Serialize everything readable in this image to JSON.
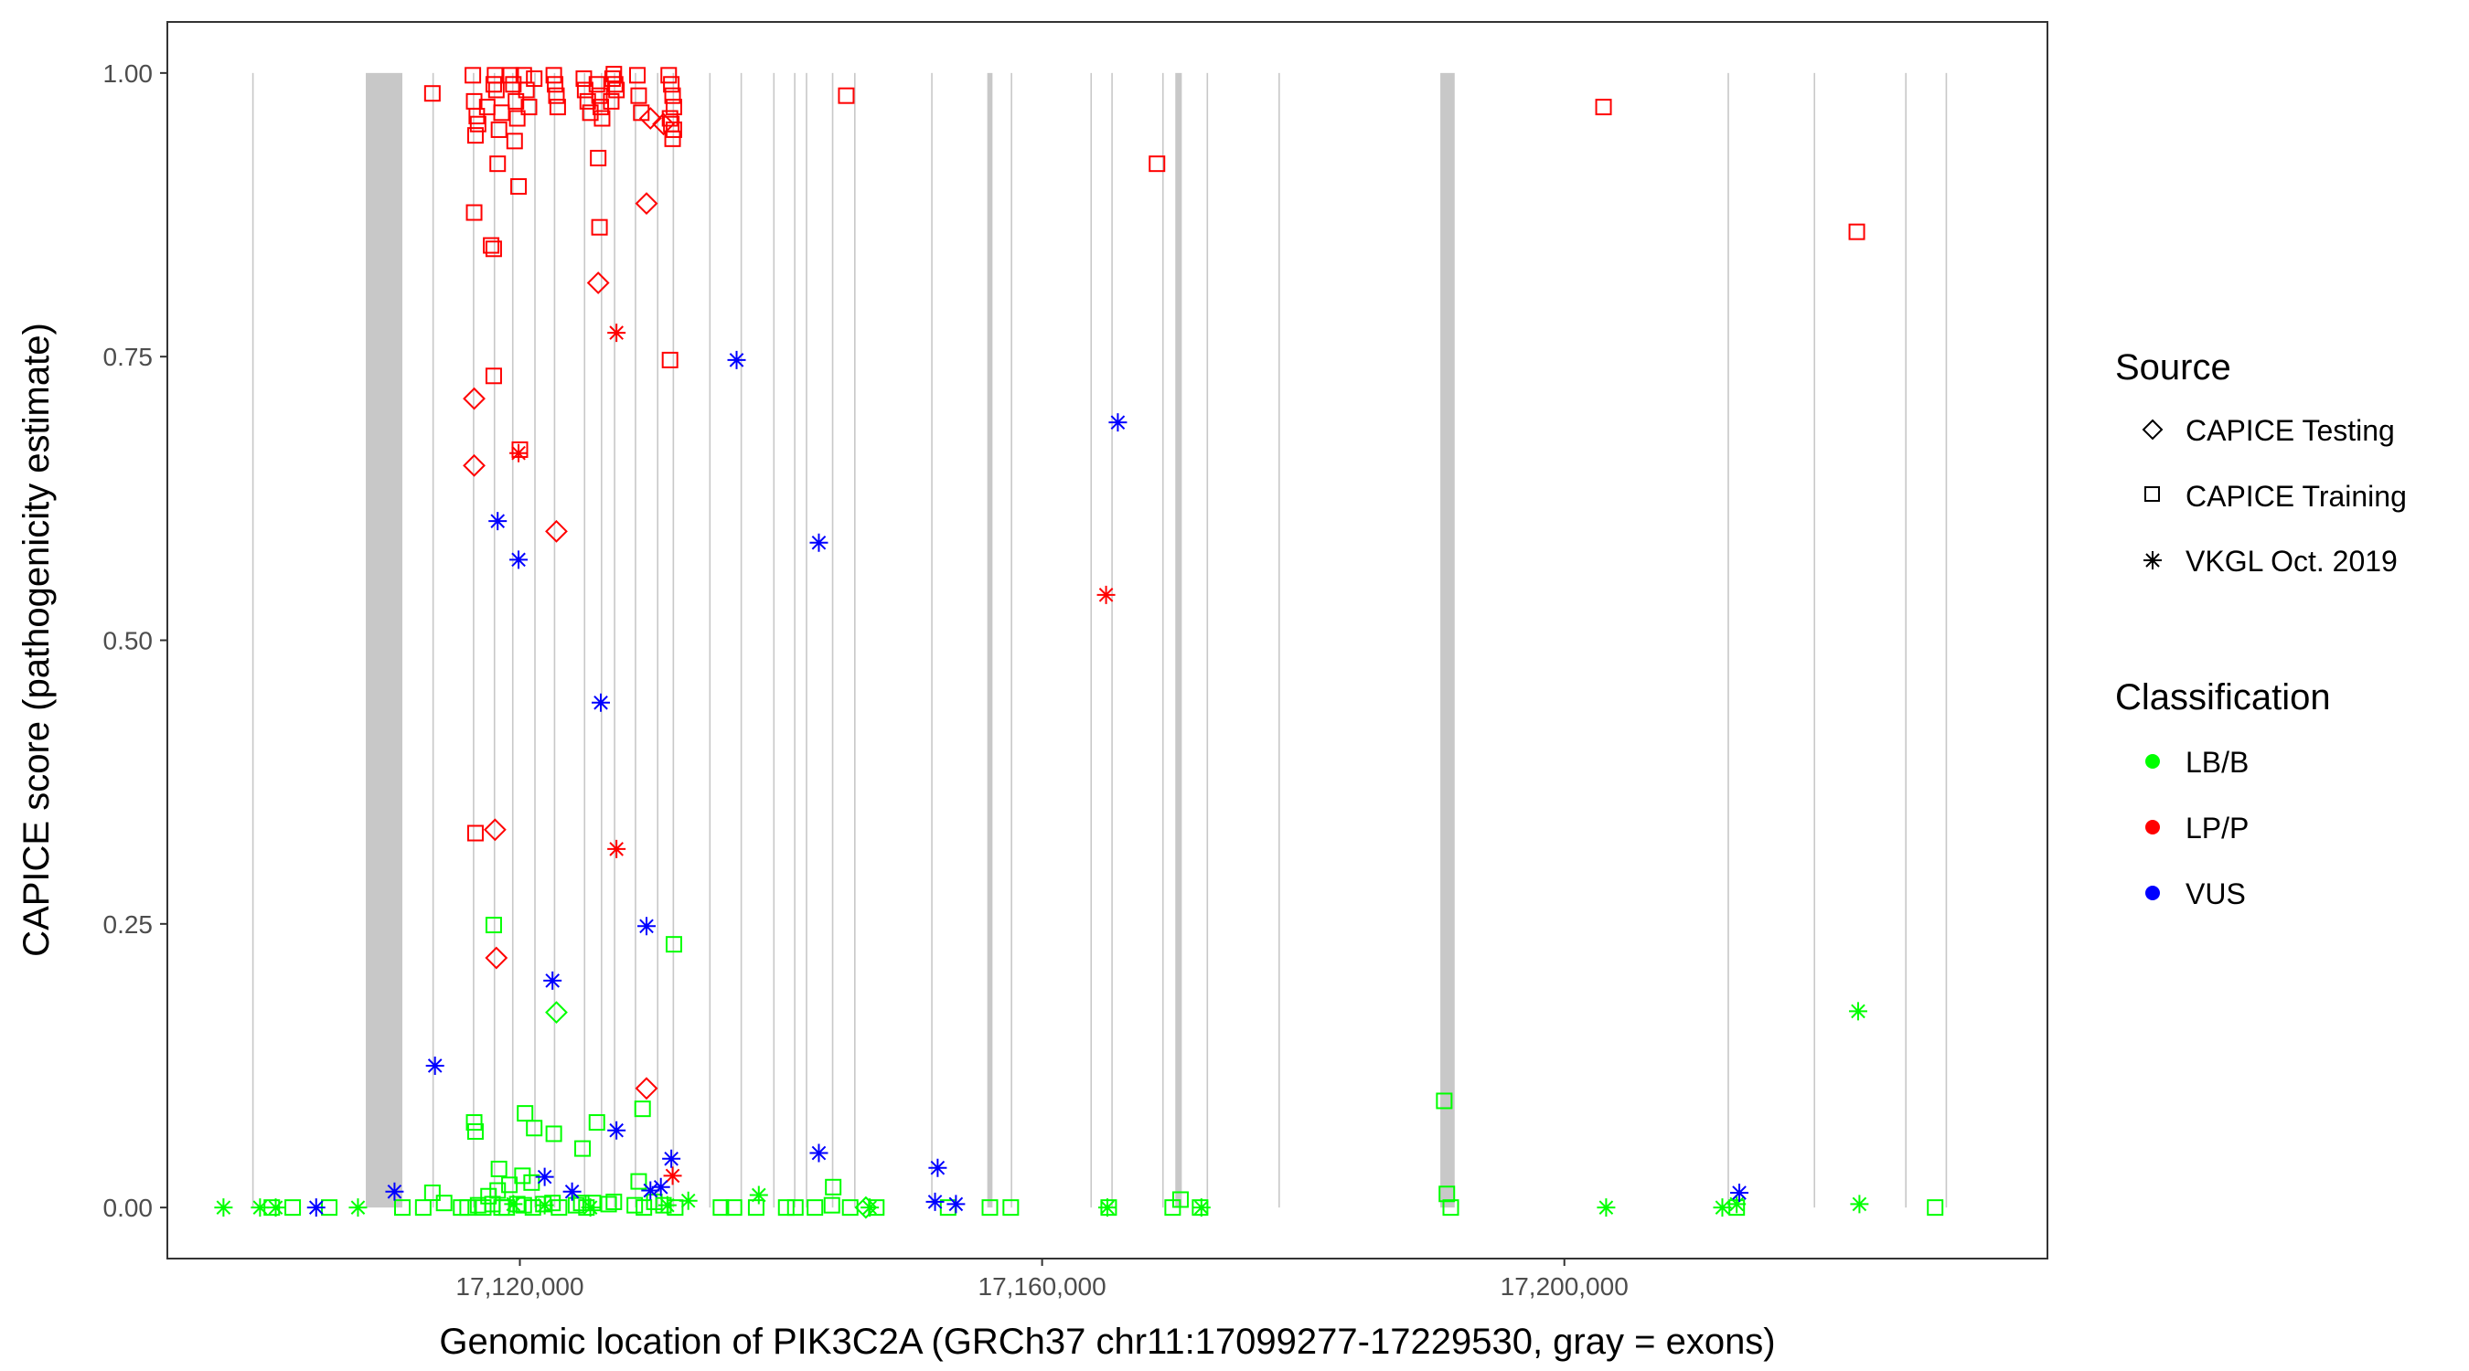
{
  "chart_data": {
    "type": "scatter",
    "xlabel": "Genomic location of PIK3C2A (GRCh37 chr11:17099277-17229530, gray = exons)",
    "ylabel": "CAPICE score (pathogenicity estimate)",
    "xlim": [
      17093000,
      17237000
    ],
    "ylim": [
      -0.045,
      1.045
    ],
    "xticks": [
      17120000,
      17160000,
      17200000
    ],
    "xtick_labels": [
      "17,120,000",
      "17,160,000",
      "17,200,000"
    ],
    "yticks": [
      0,
      0.25,
      0.5,
      0.75,
      1.0
    ],
    "ytick_labels": [
      "0.00",
      "0.25",
      "0.50",
      "0.75",
      "1.00"
    ],
    "grid": false,
    "exons": [
      {
        "start": 17099500,
        "end": 17099600
      },
      {
        "start": 17108200,
        "end": 17111000
      },
      {
        "start": 17113300,
        "end": 17113400
      },
      {
        "start": 17116400,
        "end": 17116500
      },
      {
        "start": 17118000,
        "end": 17118100
      },
      {
        "start": 17119400,
        "end": 17119500
      },
      {
        "start": 17121100,
        "end": 17121200
      },
      {
        "start": 17122600,
        "end": 17122700
      },
      {
        "start": 17124900,
        "end": 17125000
      },
      {
        "start": 17126200,
        "end": 17126300
      },
      {
        "start": 17127200,
        "end": 17127300
      },
      {
        "start": 17128800,
        "end": 17128900
      },
      {
        "start": 17130500,
        "end": 17130600
      },
      {
        "start": 17131700,
        "end": 17131800
      },
      {
        "start": 17134500,
        "end": 17134600
      },
      {
        "start": 17136900,
        "end": 17137000
      },
      {
        "start": 17139400,
        "end": 17139500
      },
      {
        "start": 17141000,
        "end": 17141100
      },
      {
        "start": 17141900,
        "end": 17142000
      },
      {
        "start": 17143900,
        "end": 17144000
      },
      {
        "start": 17145600,
        "end": 17145700
      },
      {
        "start": 17151500,
        "end": 17151600
      },
      {
        "start": 17155800,
        "end": 17156200
      },
      {
        "start": 17157600,
        "end": 17157700
      },
      {
        "start": 17163700,
        "end": 17163800
      },
      {
        "start": 17165300,
        "end": 17165400
      },
      {
        "start": 17169200,
        "end": 17169300
      },
      {
        "start": 17170200,
        "end": 17170700
      },
      {
        "start": 17172600,
        "end": 17172700
      },
      {
        "start": 17178100,
        "end": 17178200
      },
      {
        "start": 17190500,
        "end": 17191600
      },
      {
        "start": 17212500,
        "end": 17212600
      },
      {
        "start": 17219100,
        "end": 17219200
      },
      {
        "start": 17226100,
        "end": 17226200
      },
      {
        "start": 17229200,
        "end": 17229300
      }
    ],
    "legend": {
      "position": "right",
      "source_title": "Source",
      "source_entries": [
        {
          "label": "CAPICE Testing",
          "shape": "diamond"
        },
        {
          "label": "CAPICE Training",
          "shape": "square"
        },
        {
          "label": "VKGL Oct. 2019",
          "shape": "asterisk"
        }
      ],
      "class_title": "Classification",
      "class_entries": [
        {
          "label": "LB/B",
          "color": "#00ff00"
        },
        {
          "label": "LP/P",
          "color": "#ff0000"
        },
        {
          "label": "VUS",
          "color": "#0000ff"
        }
      ]
    },
    "colors": {
      "LB/B": "#00ff00",
      "LP/P": "#ff0000",
      "VUS": "#0000ff"
    },
    "series": [
      {
        "source": "CAPICE Training",
        "classification": "LP/P",
        "points": [
          [
            17113300,
            0.982
          ],
          [
            17116400,
            0.998
          ],
          [
            17116500,
            0.975
          ],
          [
            17116700,
            0.962
          ],
          [
            17116800,
            0.955
          ],
          [
            17116600,
            0.945
          ],
          [
            17117500,
            0.97
          ],
          [
            17118000,
            0.99
          ],
          [
            17118100,
            0.998
          ],
          [
            17118200,
            0.985
          ],
          [
            17118300,
            0.92
          ],
          [
            17118400,
            0.95
          ],
          [
            17118600,
            0.965
          ],
          [
            17119300,
            0.998
          ],
          [
            17119500,
            0.99
          ],
          [
            17119700,
            0.975
          ],
          [
            17119800,
            0.96
          ],
          [
            17119600,
            0.94
          ],
          [
            17119900,
            0.9
          ],
          [
            17120300,
            0.998
          ],
          [
            17120500,
            0.985
          ],
          [
            17120700,
            0.97
          ],
          [
            17121100,
            0.995
          ],
          [
            17122600,
            0.998
          ],
          [
            17122700,
            0.99
          ],
          [
            17122800,
            0.98
          ],
          [
            17122900,
            0.97
          ],
          [
            17124900,
            0.995
          ],
          [
            17125000,
            0.985
          ],
          [
            17125200,
            0.975
          ],
          [
            17125400,
            0.965
          ],
          [
            17125900,
            0.99
          ],
          [
            17126100,
            0.98
          ],
          [
            17126200,
            0.97
          ],
          [
            17126300,
            0.96
          ],
          [
            17127100,
            0.995
          ],
          [
            17127200,
            0.999
          ],
          [
            17127300,
            0.99
          ],
          [
            17127400,
            0.985
          ],
          [
            17127000,
            0.975
          ],
          [
            17129000,
            0.998
          ],
          [
            17129100,
            0.98
          ],
          [
            17129300,
            0.965
          ],
          [
            17131400,
            0.998
          ],
          [
            17131600,
            0.99
          ],
          [
            17131700,
            0.98
          ],
          [
            17131800,
            0.97
          ],
          [
            17131500,
            0.96
          ],
          [
            17131600,
            0.955
          ],
          [
            17131700,
            0.942
          ],
          [
            17131800,
            0.95
          ],
          [
            17145000,
            0.98
          ],
          [
            17168800,
            0.92
          ],
          [
            17203000,
            0.97
          ],
          [
            17222400,
            0.86
          ],
          [
            17116500,
            0.877
          ],
          [
            17117800,
            0.848
          ],
          [
            17118000,
            0.845
          ],
          [
            17118000,
            0.733
          ],
          [
            17120000,
            0.668
          ],
          [
            17126000,
            0.925
          ],
          [
            17126100,
            0.864
          ],
          [
            17131500,
            0.747
          ],
          [
            17116600,
            0.33
          ]
        ]
      },
      {
        "source": "CAPICE Testing",
        "classification": "LP/P",
        "points": [
          [
            17130000,
            0.96
          ],
          [
            17131000,
            0.955
          ],
          [
            17129700,
            0.885
          ],
          [
            17126000,
            0.815
          ],
          [
            17116500,
            0.713
          ],
          [
            17116500,
            0.654
          ],
          [
            17122800,
            0.596
          ],
          [
            17118100,
            0.333
          ],
          [
            17118200,
            0.22
          ],
          [
            17129700,
            0.105
          ]
        ]
      },
      {
        "source": "VKGL Oct. 2019",
        "classification": "LP/P",
        "points": [
          [
            17127400,
            0.771
          ],
          [
            17164900,
            0.54
          ],
          [
            17127400,
            0.316
          ],
          [
            17119900,
            0.665
          ],
          [
            17131700,
            0.028
          ]
        ]
      },
      {
        "source": "VKGL Oct. 2019",
        "classification": "VUS",
        "points": [
          [
            17136600,
            0.747
          ],
          [
            17165800,
            0.692
          ],
          [
            17118300,
            0.605
          ],
          [
            17119900,
            0.571
          ],
          [
            17142900,
            0.586
          ],
          [
            17126200,
            0.445
          ],
          [
            17129700,
            0.248
          ],
          [
            17122500,
            0.2
          ],
          [
            17113500,
            0.125
          ],
          [
            17127400,
            0.068
          ],
          [
            17131600,
            0.043
          ],
          [
            17142900,
            0.048
          ],
          [
            17152000,
            0.035
          ],
          [
            17121900,
            0.027
          ],
          [
            17130800,
            0.018
          ],
          [
            17130000,
            0.015
          ],
          [
            17124000,
            0.014
          ],
          [
            17110400,
            0.014
          ],
          [
            17213400,
            0.013
          ],
          [
            17104400,
            0.0
          ],
          [
            17151800,
            0.005
          ],
          [
            17153400,
            0.003
          ]
        ]
      },
      {
        "source": "CAPICE Training",
        "classification": "LB/B",
        "points": [
          [
            17118000,
            0.249
          ],
          [
            17131800,
            0.232
          ],
          [
            17116500,
            0.075
          ],
          [
            17116600,
            0.067
          ],
          [
            17120400,
            0.083
          ],
          [
            17121100,
            0.07
          ],
          [
            17122600,
            0.065
          ],
          [
            17124800,
            0.052
          ],
          [
            17125900,
            0.075
          ],
          [
            17129400,
            0.087
          ],
          [
            17190800,
            0.094
          ],
          [
            17118400,
            0.034
          ],
          [
            17120200,
            0.028
          ],
          [
            17120900,
            0.022
          ],
          [
            17119200,
            0.02
          ],
          [
            17118300,
            0.015
          ],
          [
            17117600,
            0.01
          ],
          [
            17113300,
            0.013
          ],
          [
            17144000,
            0.018
          ],
          [
            17143900,
            0.002
          ],
          [
            17129100,
            0.023
          ],
          [
            17191000,
            0.012
          ],
          [
            17170600,
            0.007
          ],
          [
            17125600,
            0.004
          ],
          [
            17114200,
            0.004
          ],
          [
            17115500,
            0.0
          ],
          [
            17116000,
            0.0
          ],
          [
            17116800,
            0.002
          ],
          [
            17117200,
            0.0
          ],
          [
            17117900,
            0.003
          ],
          [
            17118600,
            0.0
          ],
          [
            17119000,
            0.0
          ],
          [
            17119800,
            0.003
          ],
          [
            17120300,
            0.002
          ],
          [
            17121000,
            0.0
          ],
          [
            17121800,
            0.003
          ],
          [
            17122500,
            0.004
          ],
          [
            17123000,
            0.0
          ],
          [
            17124300,
            0.002
          ],
          [
            17124700,
            0.004
          ],
          [
            17125100,
            0.0
          ],
          [
            17126800,
            0.003
          ],
          [
            17127200,
            0.005
          ],
          [
            17128800,
            0.002
          ],
          [
            17129500,
            0.0
          ],
          [
            17130300,
            0.005
          ],
          [
            17131000,
            0.002
          ],
          [
            17131900,
            0.0
          ],
          [
            17135400,
            0.0
          ],
          [
            17136400,
            0.0
          ],
          [
            17138100,
            0.0
          ],
          [
            17140400,
            0.0
          ],
          [
            17141100,
            0.0
          ],
          [
            17142600,
            0.0
          ],
          [
            17145300,
            0.0
          ],
          [
            17147300,
            0.0
          ],
          [
            17152800,
            0.0
          ],
          [
            17156000,
            0.0
          ],
          [
            17157600,
            0.0
          ],
          [
            17165100,
            0.0
          ],
          [
            17170000,
            0.0
          ],
          [
            17172100,
            0.0
          ],
          [
            17191300,
            0.0
          ],
          [
            17213200,
            0.0
          ],
          [
            17228400,
            0.0
          ],
          [
            17101000,
            0.0
          ],
          [
            17102600,
            0.0
          ],
          [
            17105400,
            0.0
          ],
          [
            17111000,
            0.0
          ],
          [
            17112600,
            0.0
          ]
        ]
      },
      {
        "source": "CAPICE Testing",
        "classification": "LB/B",
        "points": [
          [
            17122800,
            0.172
          ],
          [
            17146500,
            0.0
          ]
        ]
      },
      {
        "source": "VKGL Oct. 2019",
        "classification": "LB/B",
        "points": [
          [
            17222500,
            0.173
          ],
          [
            17097300,
            0.0
          ],
          [
            17100100,
            0.0
          ],
          [
            17101300,
            0.0
          ],
          [
            17107600,
            0.0
          ],
          [
            17119500,
            0.003
          ],
          [
            17121900,
            0.002
          ],
          [
            17125400,
            0.0
          ],
          [
            17131300,
            0.002
          ],
          [
            17132900,
            0.006
          ],
          [
            17138300,
            0.011
          ],
          [
            17146800,
            0.0
          ],
          [
            17165000,
            0.0
          ],
          [
            17172200,
            0.0
          ],
          [
            17203200,
            0.0
          ],
          [
            17212100,
            0.0
          ],
          [
            17213200,
            0.003
          ],
          [
            17222600,
            0.003
          ]
        ]
      }
    ]
  }
}
